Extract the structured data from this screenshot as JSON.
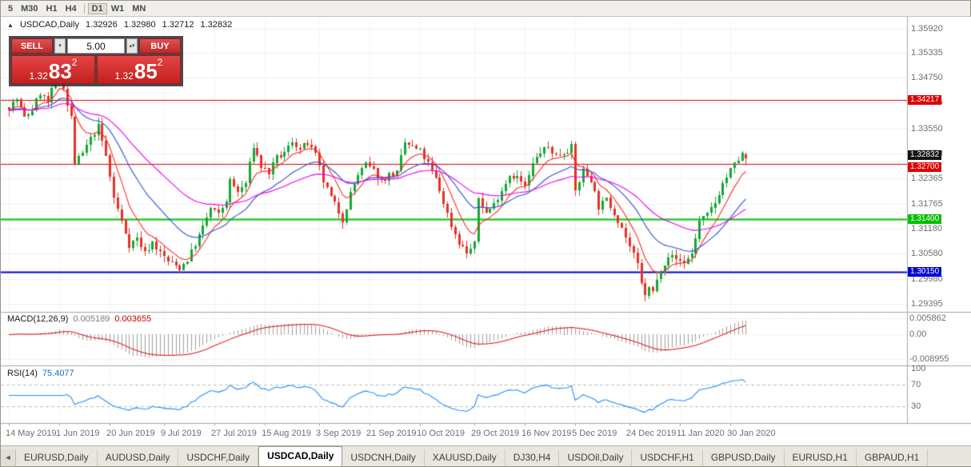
{
  "toolbar": {
    "timeframes_left": [
      "5",
      "M30",
      "H1",
      "H4"
    ],
    "timeframes_right": [
      "D1",
      "W1",
      "MN"
    ],
    "active_timeframe": "D1"
  },
  "chart_header": {
    "collapse_icon": "▲",
    "title": "USDCAD,Daily",
    "open": "1.32926",
    "high": "1.32980",
    "low": "1.32712",
    "close": "1.32832"
  },
  "trade_panel": {
    "sell_label": "SELL",
    "buy_label": "BUY",
    "volume": "5.00",
    "dropdown_glyph": "▾",
    "stepper_glyph": "▴▾",
    "sell_small": "1.32",
    "sell_big": "83",
    "sell_sup": "2",
    "buy_small": "1.32",
    "buy_big": "85",
    "buy_sup": "2"
  },
  "indicators": {
    "macd": {
      "label": "MACD(12,26,9)",
      "value_main": "0.005189",
      "value_signal": "0.003655"
    },
    "rsi": {
      "label": "RSI(14)",
      "value": "75.4077"
    }
  },
  "chart_data": {
    "type": "candlestick",
    "symbol": "USDCAD",
    "timeframe": "Daily",
    "bars_total": 191,
    "price_range": {
      "top": 1.3612,
      "bottom": 1.2922
    },
    "y_axis_labels": [
      "1.35920",
      "1.35335",
      "1.34750",
      "1.34165",
      "1.33550",
      "1.32950",
      "1.32365",
      "1.31765",
      "1.31180",
      "1.30580",
      "1.29980",
      "1.29395"
    ],
    "hlines": [
      {
        "price": 1.34217,
        "label": "1.34217",
        "color": "#e00000",
        "width": 1
      },
      {
        "price": 1.327,
        "label": "1.32700",
        "color": "#e00000",
        "width": 1
      },
      {
        "price": 1.314,
        "label": "1.31400",
        "color": "#00c000",
        "width": 2
      },
      {
        "price": 1.3015,
        "label": "1.30150",
        "color": "#0000d6",
        "width": 2
      }
    ],
    "current_price_tag": {
      "price": 1.32832,
      "label": "1.32832",
      "color": "#141414"
    },
    "candle_colors": {
      "up": "#16a735",
      "down": "#e53227"
    },
    "moving_averages": [
      {
        "period": 8,
        "color": "#ff2a2a"
      },
      {
        "period": 21,
        "color": "#3050d8"
      },
      {
        "period": 45,
        "color": "#f000f0"
      }
    ],
    "x_labels": [
      {
        "i": 0,
        "label": "14 May 2019"
      },
      {
        "i": 13,
        "label": "1 Jun 2019"
      },
      {
        "i": 26,
        "label": "20 Jun 2019"
      },
      {
        "i": 40,
        "label": "9 Jul 2019"
      },
      {
        "i": 53,
        "label": "27 Jul 2019"
      },
      {
        "i": 66,
        "label": "15 Aug 2019"
      },
      {
        "i": 80,
        "label": "3 Sep 2019"
      },
      {
        "i": 93,
        "label": "21 Sep 2019"
      },
      {
        "i": 106,
        "label": "10 Oct 2019"
      },
      {
        "i": 120,
        "label": "29 Oct 2019"
      },
      {
        "i": 133,
        "label": "16 Nov 2019"
      },
      {
        "i": 146,
        "label": "5 Dec 2019"
      },
      {
        "i": 160,
        "label": "24 Dec 2019"
      },
      {
        "i": 173,
        "label": "11 Jan 2020"
      },
      {
        "i": 186,
        "label": "30 Jan 2020"
      }
    ],
    "anchors": [
      [
        0,
        1.3405
      ],
      [
        2,
        1.3425
      ],
      [
        4,
        1.338
      ],
      [
        6,
        1.34
      ],
      [
        8,
        1.344
      ],
      [
        10,
        1.3415
      ],
      [
        12,
        1.347
      ],
      [
        13,
        1.35
      ],
      [
        14,
        1.3455
      ],
      [
        15,
        1.341
      ],
      [
        16,
        1.338
      ],
      [
        17,
        1.3272
      ],
      [
        19,
        1.3295
      ],
      [
        21,
        1.333
      ],
      [
        23,
        1.336
      ],
      [
        25,
        1.329
      ],
      [
        27,
        1.319
      ],
      [
        29,
        1.3135
      ],
      [
        31,
        1.308
      ],
      [
        33,
        1.3095
      ],
      [
        35,
        1.306
      ],
      [
        37,
        1.3085
      ],
      [
        39,
        1.306
      ],
      [
        41,
        1.304
      ],
      [
        44,
        1.3025
      ],
      [
        46,
        1.3045
      ],
      [
        48,
        1.308
      ],
      [
        50,
        1.312
      ],
      [
        52,
        1.3165
      ],
      [
        54,
        1.315
      ],
      [
        56,
        1.3185
      ],
      [
        57,
        1.323
      ],
      [
        59,
        1.3205
      ],
      [
        61,
        1.3225
      ],
      [
        63,
        1.3315
      ],
      [
        65,
        1.3265
      ],
      [
        67,
        1.325
      ],
      [
        69,
        1.3285
      ],
      [
        71,
        1.3295
      ],
      [
        73,
        1.3325
      ],
      [
        75,
        1.3305
      ],
      [
        77,
        1.332
      ],
      [
        79,
        1.329
      ],
      [
        81,
        1.323
      ],
      [
        83,
        1.319
      ],
      [
        86,
        1.314
      ],
      [
        88,
        1.32
      ],
      [
        90,
        1.3245
      ],
      [
        92,
        1.327
      ],
      [
        94,
        1.3255
      ],
      [
        96,
        1.323
      ],
      [
        98,
        1.3245
      ],
      [
        100,
        1.325
      ],
      [
        102,
        1.332
      ],
      [
        104,
        1.331
      ],
      [
        106,
        1.33
      ],
      [
        108,
        1.327
      ],
      [
        110,
        1.3235
      ],
      [
        112,
        1.318
      ],
      [
        114,
        1.3125
      ],
      [
        116,
        1.3085
      ],
      [
        118,
        1.306
      ],
      [
        120,
        1.308
      ],
      [
        121,
        1.319
      ],
      [
        123,
        1.3155
      ],
      [
        125,
        1.3175
      ],
      [
        127,
        1.321
      ],
      [
        129,
        1.3245
      ],
      [
        131,
        1.324
      ],
      [
        133,
        1.3215
      ],
      [
        135,
        1.327
      ],
      [
        137,
        1.33
      ],
      [
        139,
        1.331
      ],
      [
        141,
        1.329
      ],
      [
        143,
        1.33
      ],
      [
        145,
        1.331
      ],
      [
        146,
        1.3205
      ],
      [
        148,
        1.3255
      ],
      [
        150,
        1.3235
      ],
      [
        152,
        1.317
      ],
      [
        154,
        1.3185
      ],
      [
        156,
        1.3155
      ],
      [
        158,
        1.312
      ],
      [
        160,
        1.3075
      ],
      [
        162,
        1.303
      ],
      [
        163,
        1.2985
      ],
      [
        164,
        1.2962
      ],
      [
        165,
        1.2975
      ],
      [
        166,
        1.2968
      ],
      [
        168,
        1.302
      ],
      [
        170,
        1.3055
      ],
      [
        172,
        1.3045
      ],
      [
        174,
        1.3038
      ],
      [
        176,
        1.3058
      ],
      [
        178,
        1.3135
      ],
      [
        180,
        1.3148
      ],
      [
        182,
        1.318
      ],
      [
        184,
        1.3225
      ],
      [
        186,
        1.3255
      ],
      [
        188,
        1.3282
      ],
      [
        189,
        1.3293
      ],
      [
        190,
        1.32832
      ]
    ],
    "forced_wicks": [
      {
        "i": 13,
        "high": 1.3535
      },
      {
        "i": 44,
        "low": 1.3016
      },
      {
        "i": 164,
        "low": 1.2945
      }
    ],
    "last_bar": {
      "open": 1.32926,
      "high": 1.3298,
      "low": 1.32712,
      "close": 1.32832
    },
    "macd": {
      "fast": 12,
      "slow": 26,
      "signal": 9,
      "range_max": 0.0062,
      "range_min": -0.0095,
      "hist_color": "#a0a0a0",
      "signal_color": "#e00000",
      "axis_labels": [
        {
          "v": 0.005862,
          "label": "0.005862"
        },
        {
          "v": 0,
          "label": "0.00"
        },
        {
          "v": -0.008955,
          "label": "-0.008955"
        }
      ]
    },
    "rsi": {
      "period": 14,
      "color": "#1E90FF",
      "axis_labels": [
        {
          "v": 100,
          "label": "100"
        },
        {
          "v": 70,
          "label": "70"
        },
        {
          "v": 30,
          "label": "30"
        }
      ],
      "level_lines": [
        70,
        30
      ]
    }
  },
  "tabs": {
    "scroll_left_glyph": "◄",
    "items": [
      "EURUSD,Daily",
      "AUDUSD,Daily",
      "USDCHF,Daily",
      "USDCAD,Daily",
      "USDCNH,Daily",
      "XAUUSD,Daily",
      "DJ30,H4",
      "USDOil,Daily",
      "USDCHF,H1",
      "GBPUSD,Daily",
      "EURUSD,H1",
      "GBPAUD,H1"
    ],
    "active_index": 3
  }
}
